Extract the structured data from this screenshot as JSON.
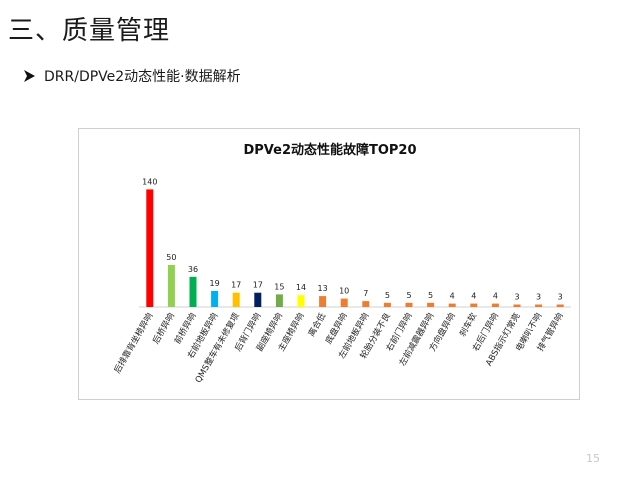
{
  "slide": {
    "title": "三、质量管理",
    "subtitle": "DRR/DPVe2动态性能·数据解析",
    "page_number": "15"
  },
  "chart_data": {
    "type": "bar",
    "title": "DPVe2动态性能故障TOP20",
    "xlabel": "",
    "ylabel": "",
    "ylim": [
      0,
      150
    ],
    "grid": false,
    "legend": "none",
    "categories": [
      "后排靠背坐椅异响",
      "后桥异响",
      "前桥异响",
      "右前地板异响",
      "QMS整车有未修复项",
      "后背门异响",
      "副座椅异响",
      "主座椅异响",
      "离合低",
      "底盘异响",
      "左前地板异响",
      "轮胎分装不良",
      "右前门异响",
      "左前减震器异响",
      "方向盘异响",
      "刹车软",
      "右后门异响",
      "ABS指示灯常亮",
      "电喇叭不响",
      "排气管异响"
    ],
    "values": [
      140,
      50,
      36,
      19,
      17,
      17,
      15,
      14,
      13,
      10,
      7,
      5,
      5,
      5,
      4,
      4,
      4,
      3,
      3,
      3
    ],
    "colors": [
      "#ff0000",
      "#92d050",
      "#00b050",
      "#00b0f0",
      "#ffc000",
      "#002060",
      "#70ad47",
      "#ffff00",
      "#ed7d31",
      "#ed7d31",
      "#ed7d31",
      "#ed7d31",
      "#ed7d31",
      "#ed7d31",
      "#ed7d31",
      "#ed7d31",
      "#ed7d31",
      "#ed7d31",
      "#ed7d31",
      "#ed7d31"
    ]
  }
}
